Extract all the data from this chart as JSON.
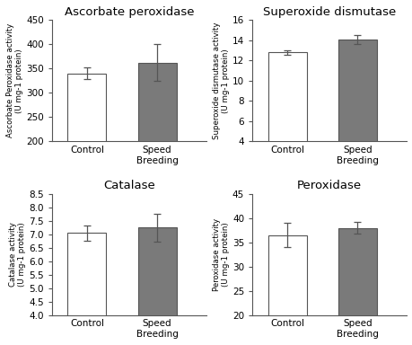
{
  "subplots": [
    {
      "title": "Ascorbate peroxidase",
      "ylabel": "Ascorbate Peroxidase activity\n(U mg-1 protein)",
      "categories": [
        "Control",
        "Speed\nBreeding"
      ],
      "values": [
        340,
        362
      ],
      "errors": [
        12,
        38
      ],
      "ylim": [
        200,
        450
      ],
      "yticks": [
        200,
        250,
        300,
        350,
        400,
        450
      ],
      "bar_colors": [
        "white",
        "#7a7a7a"
      ]
    },
    {
      "title": "Superoxide dismutase",
      "ylabel": "Superoxide dismutase activity\n(U mg-1 protein)",
      "categories": [
        "Control",
        "Speed\nBreeding"
      ],
      "values": [
        12.8,
        14.1
      ],
      "errors": [
        0.25,
        0.45
      ],
      "ylim": [
        4,
        16
      ],
      "yticks": [
        4,
        6,
        8,
        10,
        12,
        14,
        16
      ],
      "bar_colors": [
        "white",
        "#7a7a7a"
      ]
    },
    {
      "title": "Catalase",
      "ylabel": "Catalase activity\n(U mg-1 protein)",
      "categories": [
        "Control",
        "Speed\nBreeding"
      ],
      "values": [
        7.05,
        7.25
      ],
      "errors": [
        0.28,
        0.52
      ],
      "ylim": [
        4,
        8.5
      ],
      "yticks": [
        4,
        4.5,
        5,
        5.5,
        6,
        6.5,
        7,
        7.5,
        8,
        8.5
      ],
      "bar_colors": [
        "white",
        "#7a7a7a"
      ]
    },
    {
      "title": "Peroxidase",
      "ylabel": "Peroxidase activity\n(U mg-1 protein)",
      "categories": [
        "Control",
        "Speed\nBreeding"
      ],
      "values": [
        36.5,
        38.0
      ],
      "errors": [
        2.5,
        1.2
      ],
      "ylim": [
        20,
        45
      ],
      "yticks": [
        20,
        25,
        30,
        35,
        40,
        45
      ],
      "bar_colors": [
        "white",
        "#7a7a7a"
      ]
    }
  ],
  "bar_width": 0.55,
  "edge_color": "#555555",
  "capsize": 3,
  "error_color": "#555555",
  "background_color": "#ffffff",
  "title_fontsize": 9.5,
  "label_fontsize": 6.2,
  "tick_fontsize": 7.5
}
